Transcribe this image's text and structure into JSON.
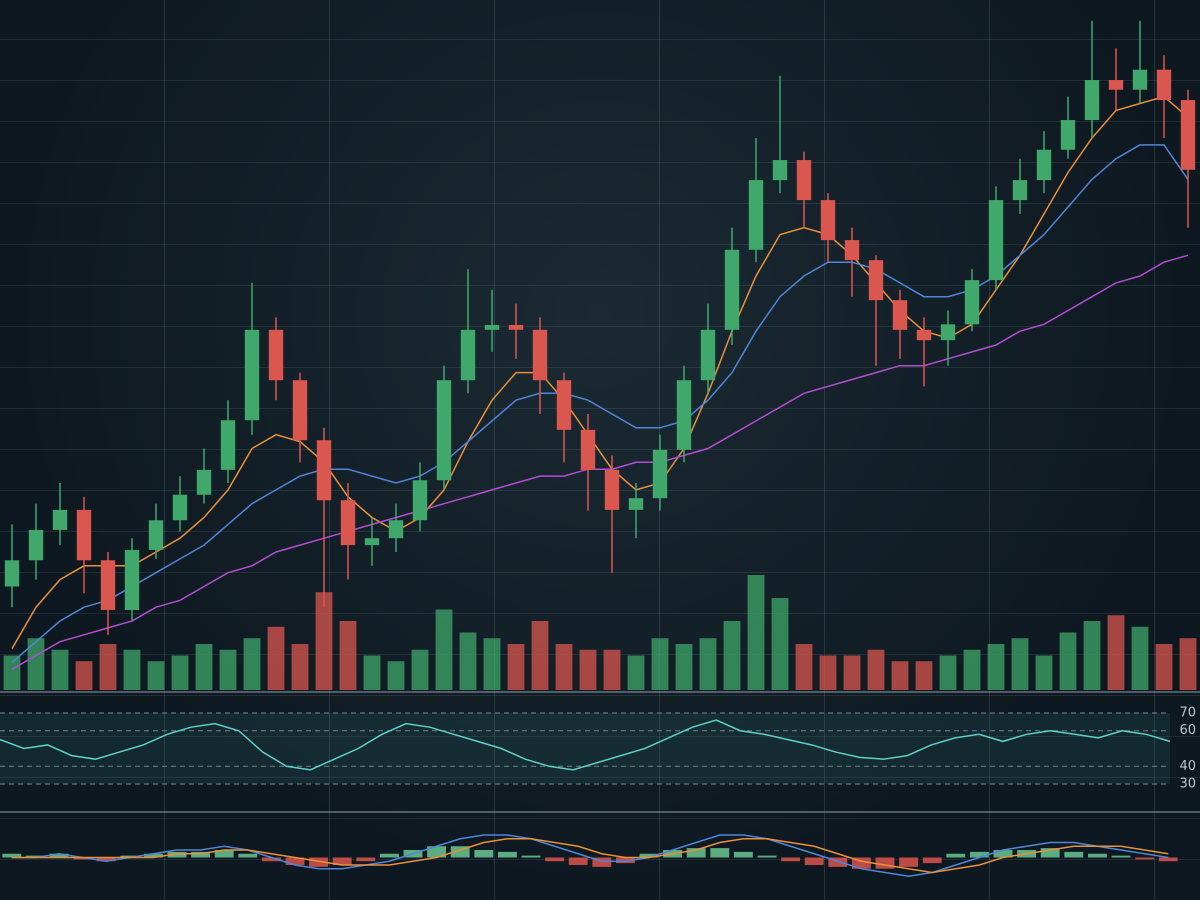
{
  "chart_data": [
    {
      "type": "candlestick",
      "ylim": [
        0,
        100
      ],
      "up_color": "#3fa86a",
      "down_color": "#d9574f",
      "open": [
        15,
        18.8,
        23.2,
        26.1,
        18.8,
        11.6,
        20.3,
        24.6,
        28.3,
        31.9,
        39.1,
        52.2,
        44.9,
        36.2,
        27.5,
        21.0,
        22.0,
        24.6,
        30.4,
        44.9,
        52.2,
        52.9,
        52.2,
        44.9,
        37.7,
        31.9,
        26.1,
        27.8,
        34.8,
        44.9,
        52.2,
        63.8,
        73.9,
        76.8,
        71.0,
        65.2,
        62.3,
        56.5,
        52.2,
        50.7,
        53.0,
        59.4,
        71.0,
        73.9,
        78.3,
        82.6,
        88.4,
        87.0,
        89.9,
        85.5
      ],
      "high": [
        24,
        27,
        30,
        28,
        20,
        22,
        27,
        31,
        35,
        42,
        59,
        54,
        46,
        38,
        30,
        25,
        27,
        33,
        47,
        61,
        58,
        56,
        54,
        46,
        40,
        34,
        30,
        37,
        47,
        56,
        67,
        80,
        89,
        78,
        72,
        67,
        63,
        58,
        54,
        55,
        61,
        73,
        77,
        81,
        86,
        97,
        93,
        97,
        92,
        87
      ],
      "low": [
        12,
        16,
        21,
        14,
        8,
        10,
        19,
        23,
        27,
        30,
        37,
        42,
        33,
        12,
        16,
        18,
        20,
        23,
        29,
        43,
        49,
        48,
        40,
        33,
        26,
        17,
        22,
        26,
        33,
        43,
        50,
        62,
        72,
        67,
        62,
        57,
        47,
        48,
        44,
        47,
        52,
        58,
        69,
        72,
        77,
        80,
        84,
        85,
        80,
        67
      ],
      "close": [
        18.8,
        23.2,
        26.1,
        18.8,
        11.6,
        20.3,
        24.6,
        28.3,
        31.9,
        39.1,
        52.2,
        44.9,
        36.2,
        27.5,
        21.0,
        22.0,
        24.6,
        30.4,
        44.9,
        52.2,
        52.9,
        52.2,
        44.9,
        37.7,
        31.9,
        26.1,
        27.8,
        34.8,
        44.9,
        52.2,
        63.8,
        73.9,
        76.8,
        71.0,
        65.2,
        62.3,
        56.5,
        52.2,
        50.7,
        53.0,
        59.4,
        71.0,
        73.9,
        78.3,
        82.6,
        88.4,
        87.0,
        89.9,
        85.5,
        75.4
      ],
      "volume": {
        "ylim": [
          0,
          100
        ],
        "values": [
          30,
          45,
          35,
          25,
          40,
          35,
          25,
          30,
          40,
          35,
          45,
          55,
          40,
          85,
          60,
          30,
          25,
          35,
          70,
          50,
          45,
          40,
          60,
          40,
          35,
          35,
          30,
          45,
          40,
          45,
          60,
          100,
          80,
          40,
          30,
          30,
          35,
          25,
          25,
          30,
          35,
          40,
          45,
          30,
          50,
          60,
          65,
          55,
          40,
          45
        ]
      },
      "series": [
        {
          "color": "#e8913a",
          "values": [
            6,
            12,
            16,
            18,
            18,
            18,
            20,
            22,
            25,
            29,
            35,
            37,
            36,
            33,
            28,
            25,
            23,
            25,
            29,
            36,
            42,
            46,
            46,
            42,
            37,
            32,
            29,
            30,
            35,
            43,
            52,
            60,
            66,
            67,
            66,
            63,
            59,
            55,
            52,
            51,
            53,
            58,
            63,
            69,
            75,
            80,
            84,
            85,
            86,
            83
          ]
        },
        {
          "color": "#4f86d9",
          "values": [
            4,
            7,
            10,
            12,
            13,
            15,
            17,
            19,
            21,
            24,
            27,
            29,
            31,
            32,
            32,
            31,
            30,
            31,
            33,
            36,
            39,
            42,
            43,
            43,
            42,
            40,
            38,
            38,
            39,
            42,
            46,
            52,
            57,
            60,
            62,
            62,
            61,
            59,
            57,
            57,
            58,
            60,
            63,
            66,
            70,
            74,
            77,
            79,
            79,
            74
          ]
        },
        {
          "color": "#b24fd1",
          "values": [
            3,
            5,
            7,
            8,
            9,
            10,
            12,
            13,
            15,
            17,
            18,
            20,
            21,
            22,
            23,
            24,
            25,
            26,
            27,
            28,
            29,
            30,
            31,
            31,
            32,
            32,
            33,
            33,
            34,
            35,
            37,
            39,
            41,
            43,
            44,
            45,
            46,
            47,
            47,
            48,
            49,
            50,
            52,
            53,
            55,
            57,
            59,
            60,
            62,
            63
          ]
        }
      ]
    },
    {
      "type": "line",
      "ylim": [
        15.4,
        77.3
      ],
      "yticks": [
        70,
        60,
        40,
        30
      ],
      "series": [
        {
          "color": "#5fd0c8",
          "values": [
            55,
            50,
            52,
            46,
            44,
            48,
            52,
            58,
            62,
            64,
            60,
            48,
            40,
            38,
            44,
            50,
            58,
            64,
            62,
            58,
            54,
            50,
            44,
            40,
            38,
            42,
            46,
            50,
            56,
            62,
            66,
            60,
            58,
            55,
            52,
            48,
            45,
            44,
            46,
            52,
            56,
            58,
            54,
            58,
            60,
            58,
            56,
            60,
            58,
            54
          ]
        }
      ]
    },
    {
      "type": "macd",
      "ylim": [
        -10,
        10
      ],
      "up_color": "#6fd39a",
      "down_color": "#e8574f",
      "series": [
        {
          "color": "#4f86d9",
          "values": [
            0,
            0,
            1,
            0,
            -1,
            0,
            1,
            2,
            2,
            3,
            2,
            0,
            -2,
            -3,
            -3,
            -2,
            -1,
            1,
            3,
            5,
            6,
            6,
            5,
            3,
            1,
            -1,
            -1,
            0,
            2,
            4,
            6,
            6,
            5,
            3,
            1,
            -1,
            -3,
            -4,
            -5,
            -4,
            -2,
            0,
            2,
            3,
            4,
            4,
            3,
            2,
            1,
            0
          ]
        },
        {
          "color": "#e8913a",
          "values": [
            0,
            0,
            0,
            0,
            0,
            0,
            0,
            1,
            1,
            2,
            2,
            1,
            0,
            -1,
            -2,
            -2,
            -2,
            -1,
            0,
            2,
            4,
            5,
            5,
            4,
            3,
            1,
            0,
            0,
            1,
            2,
            4,
            5,
            5,
            4,
            3,
            1,
            -1,
            -2,
            -3,
            -4,
            -3,
            -2,
            0,
            1,
            2,
            3,
            3,
            3,
            2,
            1
          ]
        }
      ],
      "histogram": [
        1,
        0.5,
        1,
        -0.5,
        -1,
        0.5,
        1,
        1.5,
        1.5,
        2,
        1,
        -1,
        -2,
        -2.5,
        -2,
        -1,
        1,
        2,
        3,
        3,
        2,
        1.5,
        0.5,
        -1,
        -2,
        -2.5,
        -1.5,
        1,
        2,
        2.5,
        2.5,
        1.5,
        0.5,
        -1,
        -2,
        -2.5,
        -3,
        -3,
        -2.5,
        -1.5,
        1,
        1.5,
        2,
        2,
        2.5,
        1.5,
        1,
        0.5,
        -0.5,
        -1
      ]
    }
  ]
}
